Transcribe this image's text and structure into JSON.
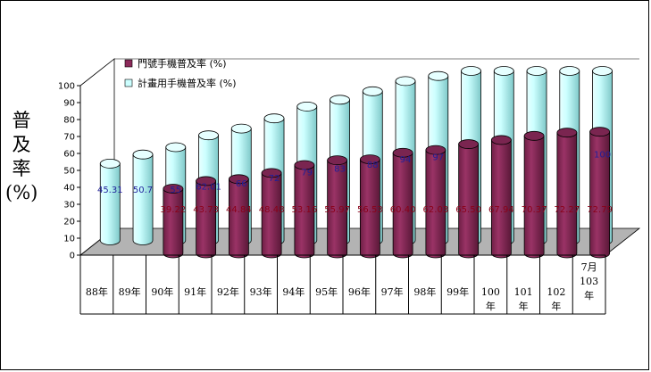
{
  "chart_data": {
    "type": "bar",
    "ylabel_chars": [
      "普",
      "及",
      "率",
      "(%)"
    ],
    "ylim": [
      0,
      100
    ],
    "yticks": [
      "0",
      "10",
      "20",
      "30",
      "40",
      "50",
      "60",
      "70",
      "80",
      "90",
      "100"
    ],
    "categories": [
      [
        "88年"
      ],
      [
        "89年"
      ],
      [
        "90年"
      ],
      [
        "91年"
      ],
      [
        "92年"
      ],
      [
        "93年"
      ],
      [
        "94年"
      ],
      [
        "95年"
      ],
      [
        "96年"
      ],
      [
        "97年"
      ],
      [
        "98年"
      ],
      [
        "99年"
      ],
      [
        "100",
        "年"
      ],
      [
        "101",
        "年"
      ],
      [
        "102",
        "年"
      ],
      [
        "7月",
        "103",
        "年"
      ]
    ],
    "series": [
      {
        "name": "門號手機普及率 (%)",
        "color": "#8c2a5a",
        "values": [
          null,
          null,
          39.22,
          43.73,
          44.84,
          48.48,
          53.16,
          55.97,
          56.53,
          60.4,
          62.03,
          65.5,
          67.94,
          70.37,
          72.27,
          72.79
        ],
        "labels": [
          "",
          "",
          "39.22",
          "43.73",
          "44.84",
          "48.48",
          "53.16",
          "55.97",
          "56.53",
          "60.40",
          "62.03",
          "65.50",
          "67.94",
          "70.37",
          "72.27",
          "72.79"
        ]
      },
      {
        "name": "計畫用手機普及率 (%)",
        "color": "#ccffff",
        "values": [
          45.31,
          50.7,
          55,
          62.01,
          66,
          72,
          79,
          83,
          88,
          94,
          97,
          100,
          100,
          100,
          100,
          100
        ],
        "labels": [
          "45.31",
          "50.7",
          "55",
          "62.01",
          "66",
          "72",
          "79",
          "83",
          "88",
          "94",
          "97",
          "",
          "",
          "",
          "",
          "100"
        ]
      }
    ],
    "grid": false,
    "legend_position": "top"
  }
}
